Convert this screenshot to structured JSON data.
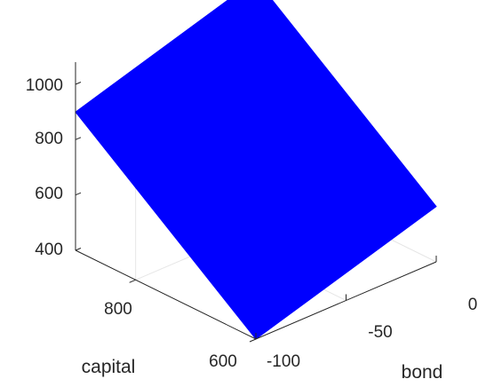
{
  "chart_data": {
    "type": "surface3d",
    "title": "",
    "xlabel": "bond",
    "ylabel": "capital",
    "zlabel": "",
    "x_ticks": [
      "-100",
      "-50",
      "0"
    ],
    "y_ticks": [
      "600",
      "800"
    ],
    "z_ticks": [
      "400",
      "600",
      "800",
      "1000"
    ],
    "zlim": [
      400,
      1000
    ],
    "grid": true,
    "surface_color": "#0000ff",
    "surface": {
      "corners": [
        {
          "bond": -100,
          "capital": 600,
          "value": 400
        },
        {
          "bond": 0,
          "capital": 600,
          "value": 600
        },
        {
          "bond": 0,
          "capital": 900,
          "value": 1100
        },
        {
          "bond": -100,
          "capital": 900,
          "value": 900
        }
      ],
      "note": ""
    }
  },
  "colors": {
    "surface": "#0000ff",
    "axis": "#262626",
    "grid": "#e6e6e6"
  }
}
